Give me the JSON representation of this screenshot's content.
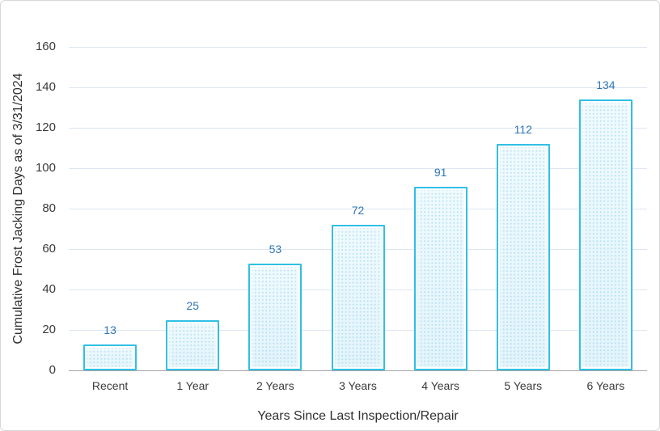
{
  "frame": {
    "background": "#ffffff",
    "border_color": "#d7d7d7"
  },
  "chart_data": {
    "type": "bar",
    "title": "",
    "categories": [
      "Recent",
      "1 Year",
      "2 Years",
      "3 Years",
      "4 Years",
      "5 Years",
      "6 Years"
    ],
    "values": [
      13,
      25,
      53,
      72,
      91,
      112,
      134
    ],
    "xlabel": "Years Since Last Inspection/Repair",
    "ylabel": "Cumulative Frost Jacking Days as of 3/31/2024",
    "ylim": [
      0,
      160
    ],
    "yticks": [
      0,
      20,
      40,
      60,
      80,
      100,
      120,
      140,
      160
    ],
    "grid": true,
    "legend": false,
    "data_labels_shown": true,
    "colors": {
      "bar_border": "#2fc0e5",
      "bar_fill": "#e4f4fb",
      "bar_texture_dot": "#8ccde8",
      "data_label": "#2e75b6",
      "gridline": "#dde6f3",
      "axis_line": "#a6a6a6",
      "tick_text": "#3a3a3a",
      "axis_title_text": "#303030"
    }
  }
}
